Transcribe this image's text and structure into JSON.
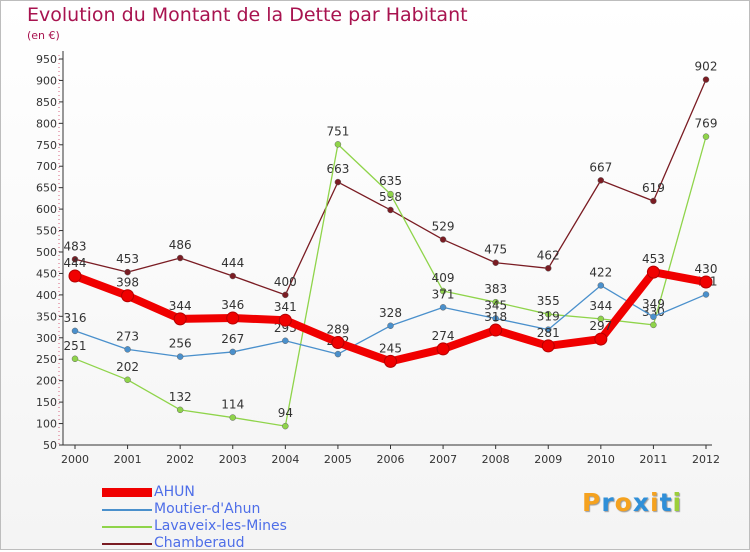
{
  "title": "Evolution du Montant de la Dette par Habitant",
  "subtitle": "(en €)",
  "logo": {
    "text": "Proxiti",
    "letters": [
      "P",
      "r",
      "o",
      "x",
      "i",
      "t",
      "i"
    ],
    "colors": [
      "#f5a21f",
      "#2f8fd8",
      "#f5a21f",
      "#2f8fd8",
      "#f5a21f",
      "#2f8fd8",
      "#9ccf3a"
    ]
  },
  "chart_data": {
    "type": "line",
    "x": [
      "2000",
      "2001",
      "2002",
      "2003",
      "2004",
      "2005",
      "2006",
      "2007",
      "2008",
      "2009",
      "2010",
      "2011",
      "2012"
    ],
    "ylim": [
      50,
      950
    ],
    "yticks": [
      50,
      100,
      150,
      200,
      250,
      300,
      350,
      400,
      450,
      500,
      550,
      600,
      650,
      700,
      750,
      800,
      850,
      900,
      950
    ],
    "grid": false,
    "legend_position": "bottom-left",
    "series": [
      {
        "name": "Chamberaud",
        "color": "#7a1c23",
        "values": [
          483,
          453,
          486,
          444,
          400,
          663,
          598,
          529,
          475,
          462,
          667,
          619,
          902
        ],
        "labels": [
          "483",
          "453",
          "486",
          "444",
          "400",
          "663",
          "598",
          "529",
          "475",
          "462",
          "667",
          "619",
          "902"
        ]
      },
      {
        "name": "Lavaveix-les-Mines",
        "color": "#8fd44a",
        "values": [
          251,
          202,
          132,
          114,
          94,
          751,
          635,
          409,
          383,
          355,
          344,
          330,
          769
        ],
        "labels": [
          "251",
          "202",
          "132",
          "114",
          "94",
          "751",
          "635",
          "409",
          "383",
          "355",
          "344",
          "330",
          "769"
        ]
      },
      {
        "name": "Moutier-d'Ahun",
        "color": "#4a90cc",
        "values": [
          316,
          273,
          256,
          267,
          293,
          262,
          328,
          371,
          345,
          319,
          422,
          349,
          401
        ],
        "labels": [
          "316",
          "273",
          "256",
          "267",
          "293",
          "262",
          "328",
          "371",
          "345",
          "319",
          "422",
          "349",
          "401"
        ]
      },
      {
        "name": "AHUN",
        "color": "#f00000",
        "values": [
          444,
          398,
          344,
          346,
          341,
          289,
          245,
          274,
          318,
          281,
          297,
          453,
          430
        ],
        "labels": [
          "444",
          "398",
          "344",
          "346",
          "341",
          "289",
          "245",
          "274",
          "318",
          "281",
          "297",
          "453",
          "430"
        ]
      }
    ],
    "legend": [
      "AHUN",
      "Moutier-d'Ahun",
      "Lavaveix-les-Mines",
      "Chamberaud"
    ]
  }
}
